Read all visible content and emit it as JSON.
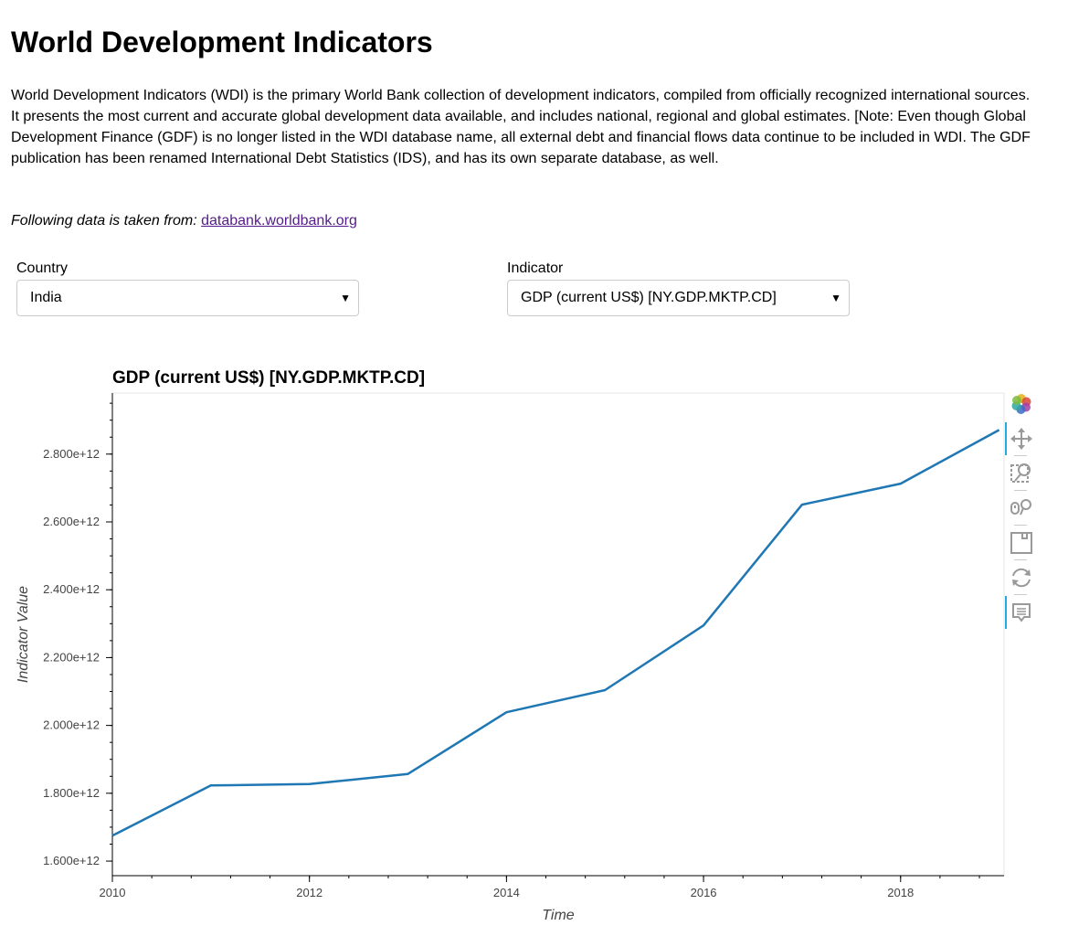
{
  "header": {
    "title": "World Development Indicators",
    "description": "World Development Indicators (WDI) is the primary World Bank collection of development indicators, compiled from officially recognized international sources. It presents the most current and accurate global development data available, and includes national, regional and global estimates. [Note: Even though Global Development Finance (GDF) is no longer listed in the WDI database name, all external debt and financial flows data continue to be included in WDI. The GDF publication has been renamed International Debt Statistics (IDS), and has its own separate database, as well.",
    "source_lead": "Following data is taken from:",
    "source_link": "databank.worldbank.org"
  },
  "controls": {
    "country_label": "Country",
    "country_value": "India",
    "indicator_label": "Indicator",
    "indicator_value": "GDP (current US$) [NY.GDP.MKTP.CD]"
  },
  "toolbar": {
    "tools": [
      "bokeh-logo-icon",
      "pan-icon",
      "box-zoom-icon",
      "wheel-zoom-icon",
      "save-icon",
      "reset-icon",
      "hover-icon"
    ]
  },
  "colors": {
    "series": "#1f77b4",
    "active_tool": "#26aae1"
  },
  "chart_data": {
    "type": "line",
    "title": "GDP (current US$) [NY.GDP.MKTP.CD]",
    "xlabel": "Time",
    "ylabel": "Indicator Value",
    "x": [
      2010,
      2011,
      2012,
      2013,
      2014,
      2015,
      2016,
      2017,
      2018,
      2019
    ],
    "series": [
      {
        "values": [
          1675000000000.0,
          1823000000000.0,
          1827000000000.0,
          1857000000000.0,
          2039000000000.0,
          2104000000000.0,
          2295000000000.0,
          2651000000000.0,
          2713000000000.0,
          2871000000000.0
        ]
      }
    ],
    "xlim": [
      2010,
      2019.05
    ],
    "ylim": [
      1557000000000.0,
      2980000000000.0
    ],
    "x_ticks": [
      2010,
      2012,
      2014,
      2016,
      2018
    ],
    "x_tick_labels": [
      "2010",
      "2012",
      "2014",
      "2016",
      "2018"
    ],
    "y_ticks": [
      1600000000000.0,
      1800000000000.0,
      2000000000000.0,
      2200000000000.0,
      2400000000000.0,
      2600000000000.0,
      2800000000000.0
    ],
    "y_tick_labels": [
      "1.600e+12",
      "1.800e+12",
      "2.000e+12",
      "2.200e+12",
      "2.400e+12",
      "2.600e+12",
      "2.800e+12"
    ],
    "grid": false,
    "legend": "none"
  }
}
